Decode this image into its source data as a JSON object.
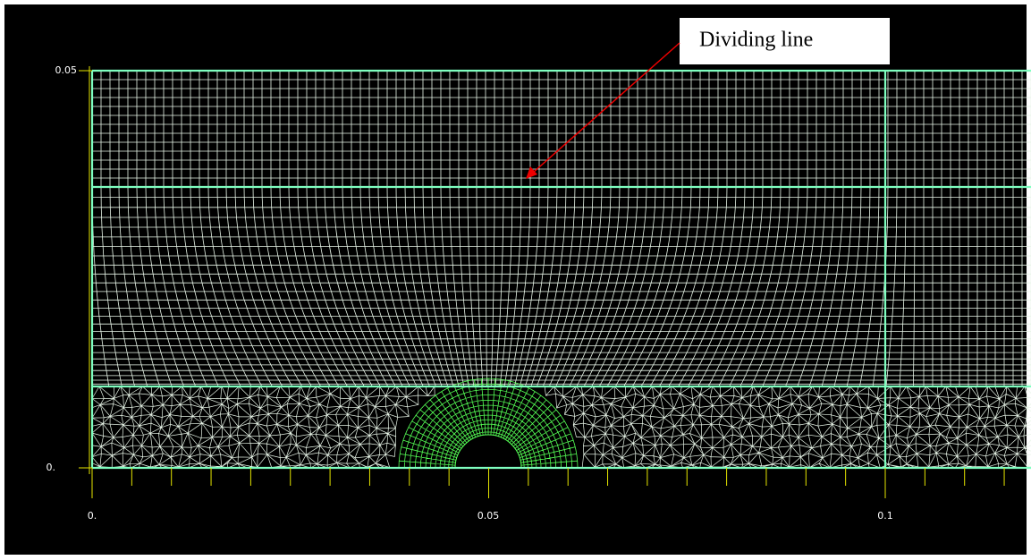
{
  "annotation": {
    "label": "Dividing line"
  },
  "y_axis": {
    "ticks": [
      {
        "label": "0.05"
      },
      {
        "label": "0."
      }
    ]
  },
  "x_axis": {
    "ticks": [
      {
        "label": "0."
      },
      {
        "label": "0.05"
      },
      {
        "label": "0.1"
      }
    ]
  }
}
